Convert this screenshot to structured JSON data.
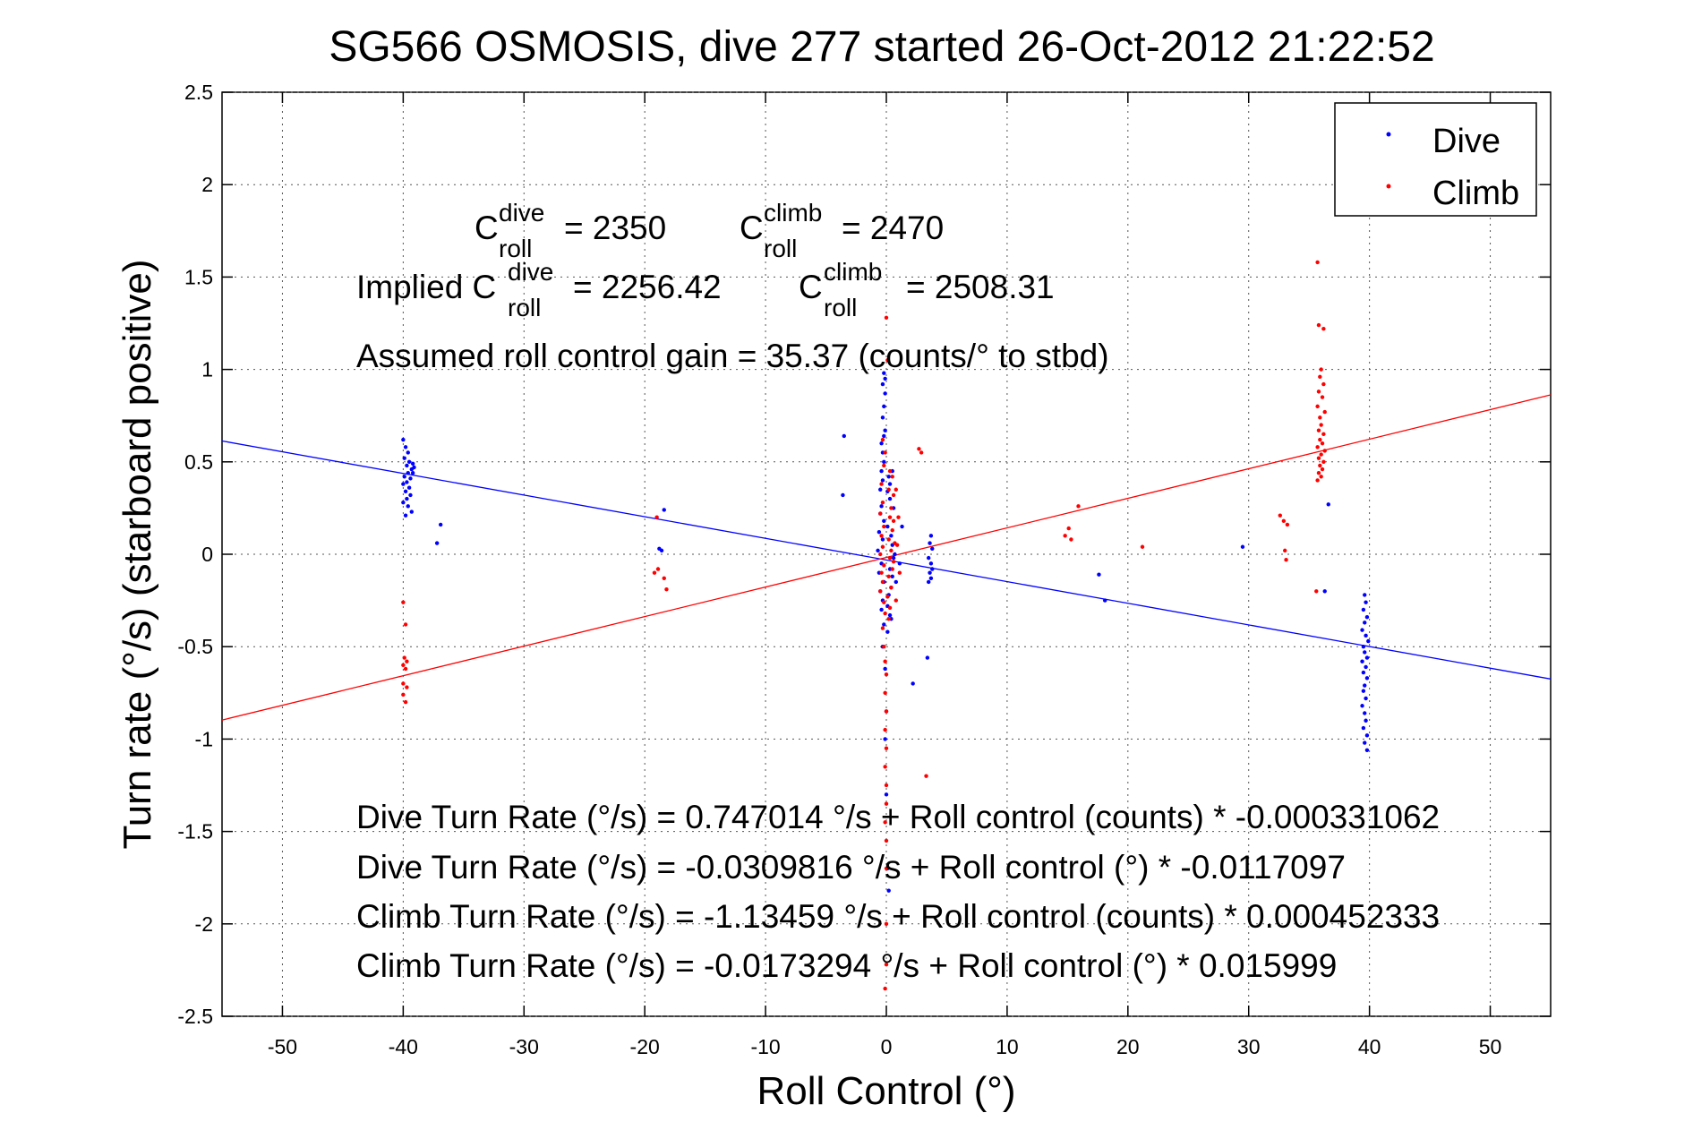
{
  "chart_data": {
    "type": "scatter",
    "title": "SG566 OSMOSIS, dive 277 started 26-Oct-2012 21:22:52",
    "xlabel": "Roll Control (°)",
    "ylabel": "Turn rate (°/s)  (starboard positive)",
    "xlim": [
      -55,
      55
    ],
    "ylim": [
      -2.5,
      2.5
    ],
    "xticks": [
      -50,
      -40,
      -30,
      -20,
      -10,
      0,
      10,
      20,
      30,
      40,
      50
    ],
    "xtick_labels": [
      "-50",
      "-40",
      "-30",
      "-20",
      "-10",
      "0",
      "10",
      "20",
      "30",
      "40",
      "50"
    ],
    "yticks": [
      -2.5,
      -2,
      -1.5,
      -1,
      -0.5,
      0,
      0.5,
      1,
      1.5,
      2,
      2.5
    ],
    "ytick_labels": [
      "-2.5",
      "-2",
      "-1.5",
      "-1",
      "-0.5",
      "0",
      "0.5",
      "1",
      "1.5",
      "2",
      "2.5"
    ],
    "grid": true,
    "legend_position": "top-right",
    "colors": {
      "dive": "#0000ff",
      "climb": "#ff0000"
    },
    "series": [
      {
        "name": "Dive",
        "color": "#0000ff",
        "marker": "dot",
        "points": [
          [
            -40.0,
            0.62
          ],
          [
            -39.8,
            0.58
          ],
          [
            -39.6,
            0.55
          ],
          [
            -39.9,
            0.52
          ],
          [
            -39.5,
            0.5
          ],
          [
            -39.7,
            0.48
          ],
          [
            -39.3,
            0.46
          ],
          [
            -39.6,
            0.44
          ],
          [
            -39.9,
            0.42
          ],
          [
            -39.4,
            0.41
          ],
          [
            -39.7,
            0.39
          ],
          [
            -40.0,
            0.38
          ],
          [
            -39.5,
            0.36
          ],
          [
            -39.8,
            0.34
          ],
          [
            -39.4,
            0.32
          ],
          [
            -39.7,
            0.3
          ],
          [
            -40.0,
            0.28
          ],
          [
            -39.6,
            0.26
          ],
          [
            -39.3,
            0.23
          ],
          [
            -39.8,
            0.21
          ],
          [
            -39.2,
            0.44
          ],
          [
            -39.1,
            0.47
          ],
          [
            -39.2,
            0.49
          ],
          [
            -36.9,
            0.16
          ],
          [
            -37.2,
            0.06
          ],
          [
            -18.4,
            0.24
          ],
          [
            -18.6,
            0.02
          ],
          [
            -18.8,
            0.03
          ],
          [
            -3.5,
            0.64
          ],
          [
            -3.6,
            0.32
          ],
          [
            -0.2,
            0.98
          ],
          [
            -0.1,
            0.95
          ],
          [
            -0.3,
            0.92
          ],
          [
            -0.1,
            0.87
          ],
          [
            -0.2,
            0.8
          ],
          [
            -0.3,
            0.74
          ],
          [
            -0.1,
            0.67
          ],
          [
            -0.2,
            0.64
          ],
          [
            -0.4,
            0.6
          ],
          [
            -0.3,
            0.55
          ],
          [
            -0.2,
            0.5
          ],
          [
            -0.4,
            0.45
          ],
          [
            -0.3,
            0.4
          ],
          [
            -0.5,
            0.35
          ],
          [
            0.2,
            0.42
          ],
          [
            0.3,
            0.38
          ],
          [
            0.1,
            0.34
          ],
          [
            0.3,
            0.3
          ],
          [
            -0.4,
            0.26
          ],
          [
            -0.5,
            0.22
          ],
          [
            -0.2,
            0.18
          ],
          [
            0.1,
            0.15
          ],
          [
            -0.6,
            0.12
          ],
          [
            0.4,
            0.1
          ],
          [
            -0.3,
            0.08
          ],
          [
            0.5,
            0.05
          ],
          [
            -0.7,
            0.02
          ],
          [
            0.6,
            -0.02
          ],
          [
            -0.4,
            -0.05
          ],
          [
            0.3,
            -0.08
          ],
          [
            -0.6,
            -0.1
          ],
          [
            0.5,
            -0.12
          ],
          [
            -0.2,
            -0.15
          ],
          [
            0.4,
            -0.18
          ],
          [
            -0.5,
            -0.2
          ],
          [
            0.2,
            -0.22
          ],
          [
            -0.3,
            -0.25
          ],
          [
            0.1,
            -0.28
          ],
          [
            -0.4,
            -0.3
          ],
          [
            0.3,
            -0.33
          ],
          [
            -0.2,
            -0.38
          ],
          [
            0.1,
            -0.42
          ],
          [
            -0.3,
            -0.5
          ],
          [
            -0.1,
            -0.62
          ],
          [
            0.0,
            -0.85
          ],
          [
            -0.1,
            -1.0
          ],
          [
            0.0,
            -1.3
          ],
          [
            0.1,
            -1.7
          ],
          [
            0.2,
            -1.82
          ],
          [
            0.5,
            0.45
          ],
          [
            0.6,
            0.25
          ],
          [
            0.7,
            0.0
          ],
          [
            0.8,
            -0.15
          ],
          [
            0.4,
            -0.35
          ],
          [
            1.1,
            -0.05
          ],
          [
            1.3,
            0.15
          ],
          [
            3.7,
            0.1
          ],
          [
            3.6,
            0.06
          ],
          [
            3.8,
            0.03
          ],
          [
            3.5,
            -0.02
          ],
          [
            3.7,
            -0.05
          ],
          [
            3.8,
            -0.08
          ],
          [
            3.6,
            -0.1
          ],
          [
            3.7,
            -0.13
          ],
          [
            3.5,
            -0.15
          ],
          [
            3.4,
            -0.56
          ],
          [
            2.2,
            -0.7
          ],
          [
            17.6,
            -0.11
          ],
          [
            18.1,
            -0.25
          ],
          [
            29.5,
            0.04
          ],
          [
            36.6,
            0.27
          ],
          [
            36.3,
            -0.2
          ],
          [
            39.6,
            -0.22
          ],
          [
            39.7,
            -0.26
          ],
          [
            39.5,
            -0.3
          ],
          [
            39.8,
            -0.34
          ],
          [
            39.6,
            -0.37
          ],
          [
            39.4,
            -0.41
          ],
          [
            39.7,
            -0.44
          ],
          [
            39.9,
            -0.47
          ],
          [
            39.5,
            -0.5
          ],
          [
            39.6,
            -0.53
          ],
          [
            39.8,
            -0.56
          ],
          [
            39.4,
            -0.58
          ],
          [
            39.7,
            -0.61
          ],
          [
            39.5,
            -0.64
          ],
          [
            39.8,
            -0.67
          ],
          [
            39.6,
            -0.71
          ],
          [
            39.5,
            -0.74
          ],
          [
            39.7,
            -0.78
          ],
          [
            39.4,
            -0.82
          ],
          [
            39.6,
            -0.86
          ],
          [
            39.7,
            -0.9
          ],
          [
            39.5,
            -0.94
          ],
          [
            39.8,
            -0.98
          ],
          [
            39.6,
            -1.02
          ],
          [
            39.8,
            -1.06
          ]
        ]
      },
      {
        "name": "Climb",
        "color": "#ff0000",
        "marker": "dot",
        "points": [
          [
            -40.0,
            -0.26
          ],
          [
            -39.8,
            -0.38
          ],
          [
            -39.9,
            -0.56
          ],
          [
            -39.7,
            -0.58
          ],
          [
            -40.0,
            -0.6
          ],
          [
            -39.8,
            -0.62
          ],
          [
            -40.0,
            -0.7
          ],
          [
            -39.7,
            -0.72
          ],
          [
            -40.0,
            -0.76
          ],
          [
            -39.8,
            -0.8
          ],
          [
            -19.0,
            0.2
          ],
          [
            -18.9,
            -0.08
          ],
          [
            -19.2,
            -0.1
          ],
          [
            -18.4,
            -0.13
          ],
          [
            -18.2,
            -0.19
          ],
          [
            -0.3,
            0.62
          ],
          [
            -0.1,
            0.55
          ],
          [
            -0.2,
            0.48
          ],
          [
            0.3,
            0.45
          ],
          [
            0.5,
            0.42
          ],
          [
            -0.4,
            0.38
          ],
          [
            0.2,
            0.35
          ],
          [
            0.6,
            0.32
          ],
          [
            -0.3,
            0.28
          ],
          [
            0.4,
            0.25
          ],
          [
            -0.5,
            0.22
          ],
          [
            0.3,
            0.2
          ],
          [
            0.6,
            0.18
          ],
          [
            -0.2,
            0.15
          ],
          [
            0.5,
            0.13
          ],
          [
            -0.4,
            0.1
          ],
          [
            0.2,
            0.08
          ],
          [
            0.7,
            0.06
          ],
          [
            -0.3,
            0.04
          ],
          [
            0.4,
            0.02
          ],
          [
            -0.5,
            0.0
          ],
          [
            0.3,
            -0.02
          ],
          [
            0.6,
            -0.04
          ],
          [
            -0.2,
            -0.06
          ],
          [
            0.5,
            -0.08
          ],
          [
            -0.4,
            -0.1
          ],
          [
            0.2,
            -0.12
          ],
          [
            -0.3,
            -0.15
          ],
          [
            0.4,
            -0.18
          ],
          [
            -0.5,
            -0.2
          ],
          [
            0.1,
            -0.23
          ],
          [
            -0.2,
            -0.26
          ],
          [
            0.3,
            -0.29
          ],
          [
            -0.1,
            -0.32
          ],
          [
            0.2,
            -0.35
          ],
          [
            -0.3,
            -0.4
          ],
          [
            -0.2,
            -0.5
          ],
          [
            -0.1,
            -0.58
          ],
          [
            0.0,
            -0.65
          ],
          [
            -0.1,
            -0.75
          ],
          [
            0.0,
            -0.85
          ],
          [
            -0.1,
            -0.95
          ],
          [
            0.0,
            -1.05
          ],
          [
            -0.1,
            -1.15
          ],
          [
            0.0,
            -1.25
          ],
          [
            0.0,
            -1.35
          ],
          [
            -0.1,
            -1.45
          ],
          [
            0.0,
            -1.55
          ],
          [
            0.0,
            -1.7
          ],
          [
            0.0,
            -2.0
          ],
          [
            0.0,
            -2.22
          ],
          [
            -0.1,
            -2.35
          ],
          [
            0.0,
            1.28
          ],
          [
            0.1,
            1.05
          ],
          [
            0.8,
            0.35
          ],
          [
            1.0,
            0.2
          ],
          [
            0.9,
            0.05
          ],
          [
            1.1,
            -0.1
          ],
          [
            0.8,
            -0.25
          ],
          [
            2.7,
            0.57
          ],
          [
            2.9,
            0.55
          ],
          [
            3.3,
            -1.2
          ],
          [
            14.8,
            0.1
          ],
          [
            15.1,
            0.14
          ],
          [
            15.3,
            0.08
          ],
          [
            15.9,
            0.26
          ],
          [
            21.2,
            0.04
          ],
          [
            32.6,
            0.21
          ],
          [
            32.9,
            0.18
          ],
          [
            33.2,
            0.16
          ],
          [
            33.0,
            0.02
          ],
          [
            33.1,
            -0.03
          ],
          [
            35.7,
            1.58
          ],
          [
            35.8,
            1.24
          ],
          [
            36.2,
            1.22
          ],
          [
            36.0,
            1.0
          ],
          [
            35.9,
            0.96
          ],
          [
            36.2,
            0.92
          ],
          [
            35.8,
            0.88
          ],
          [
            36.1,
            0.85
          ],
          [
            35.7,
            0.8
          ],
          [
            36.3,
            0.77
          ],
          [
            35.9,
            0.74
          ],
          [
            36.0,
            0.7
          ],
          [
            35.8,
            0.67
          ],
          [
            36.2,
            0.65
          ],
          [
            35.9,
            0.62
          ],
          [
            36.1,
            0.6
          ],
          [
            35.7,
            0.58
          ],
          [
            36.3,
            0.56
          ],
          [
            36.0,
            0.54
          ],
          [
            35.8,
            0.52
          ],
          [
            36.2,
            0.5
          ],
          [
            35.9,
            0.48
          ],
          [
            36.1,
            0.46
          ],
          [
            35.8,
            0.44
          ],
          [
            36.0,
            0.42
          ],
          [
            35.7,
            0.4
          ],
          [
            35.6,
            -0.2
          ]
        ]
      }
    ],
    "fit_lines": [
      {
        "name": "Dive",
        "color": "#0000ff",
        "intercept": -0.0309816,
        "slope": -0.0117097
      },
      {
        "name": "Climb",
        "color": "#ff0000",
        "intercept": -0.0173294,
        "slope": 0.015999
      }
    ],
    "legend": [
      {
        "label": "Dive",
        "color": "#0000ff"
      },
      {
        "label": "Climb",
        "color": "#ff0000"
      }
    ],
    "annotations": {
      "c_roll_dive": {
        "base": "C",
        "sup": "dive",
        "sub": "roll",
        "value": "= 2350"
      },
      "c_roll_climb": {
        "base": "C",
        "sup": "climb",
        "sub": "roll",
        "value": "= 2470"
      },
      "implied_prefix": "Implied C",
      "implied_dive": {
        "sup": "dive",
        "sub": "roll",
        "value": "= 2256.42"
      },
      "implied_climb": {
        "base": "C",
        "sup": "climb",
        "sub": "roll",
        "value": "= 2508.31"
      },
      "gain": "Assumed roll control gain = 35.37 (counts/° to stbd)",
      "equations": [
        "Dive Turn Rate (°/s) = 0.747014 °/s + Roll control (counts) * -0.000331062",
        "Dive Turn Rate (°/s) = -0.0309816 °/s + Roll control (°) * -0.0117097",
        "Climb Turn Rate (°/s) = -1.13459 °/s + Roll control (counts) * 0.000452333",
        "Climb Turn Rate (°/s) = -0.0173294 °/s + Roll control (°) * 0.015999"
      ]
    }
  }
}
